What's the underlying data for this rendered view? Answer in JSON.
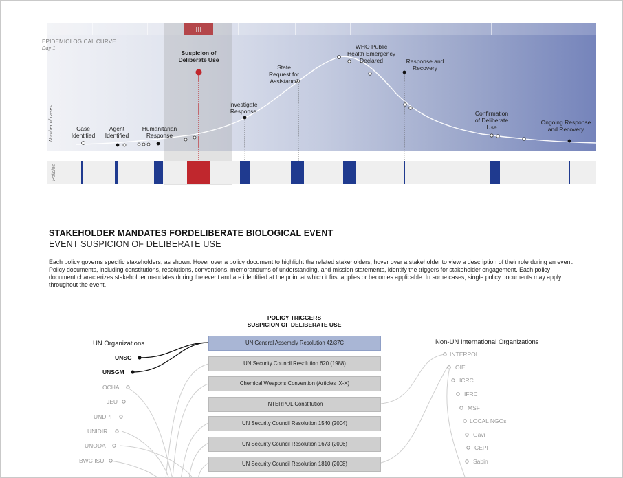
{
  "curve": {
    "title": "EPIDEMIOLOGICAL CURVE",
    "subtitle": "Day 1",
    "y_axis_label": "Number of cases",
    "selected_marker_glyph": "|||",
    "events": [
      {
        "label": "Case\nIdentified"
      },
      {
        "label": "Agent\nIdentified"
      },
      {
        "label": "Humanitarian\nResponse"
      },
      {
        "label": "Suspicion of\nDeliberate Use"
      },
      {
        "label": "Investigate\nResponse"
      },
      {
        "label": "State\nRequest for\nAssistance"
      },
      {
        "label": "WHO Public\nHealth Emergency\nDeclared"
      },
      {
        "label": "Response and\nRecovery"
      },
      {
        "label": "Confirmation\nof Deliberate\nUse"
      },
      {
        "label": "Ongoing Response\nand Recovery"
      }
    ]
  },
  "policies_strip": {
    "label": "Policies"
  },
  "mandates": {
    "title": "STAKEHOLDER MANDATES FORDELIBERATE BIOLOGICAL EVENT",
    "subtitle": "EVENT SUSPICION OF DELIBERATE USE",
    "intro": "Each policy governs specific stakeholders, as shown. Hover over a policy document to highlight the related stakeholders; hover over a stakeholder to view a description of their role during an event. Policy documents, including constitutions, resolutions, conventions, memorandums of understanding, and mission statements, identify the triggers for stakeholder engagement. Each policy document characterizes stakeholder mandates during the event and are identified at the point at which it first applies or becomes applicable. In some cases, single policy documents may apply throughout the event."
  },
  "triggers": {
    "title_line1": "POLICY TRIGGERS",
    "title_line2": "SUSPICION OF DELIBERATE USE",
    "policies": [
      {
        "label": "UN General Assembly Resolution 42/37C",
        "active": true
      },
      {
        "label": "UN Security Council Resolution 620 (1988)",
        "active": false
      },
      {
        "label": "Chemical Weapons Convention (Articles IX-X)",
        "active": false
      },
      {
        "label": "INTERPOL Constitution",
        "active": false
      },
      {
        "label": "UN Security Council Resolution 1540 (2004)",
        "active": false
      },
      {
        "label": "UN Security Council Resolution 1673 (2006)",
        "active": false
      },
      {
        "label": "UN Security Council Resolution 1810 (2008)",
        "active": false
      }
    ]
  },
  "un_orgs": {
    "title": "UN Organizations",
    "items": [
      {
        "label": "UNSG",
        "active": true
      },
      {
        "label": "UNSGM",
        "active": true
      },
      {
        "label": "OCHA",
        "active": false
      },
      {
        "label": "JEU",
        "active": false
      },
      {
        "label": "UNDPI",
        "active": false
      },
      {
        "label": "UNIDIR",
        "active": false
      },
      {
        "label": "UNODA",
        "active": false
      },
      {
        "label": "BWC ISU",
        "active": false
      }
    ]
  },
  "non_un_orgs": {
    "title": "Non-UN International Organizations",
    "items": [
      {
        "label": "INTERPOL"
      },
      {
        "label": "OIE"
      },
      {
        "label": "ICRC"
      },
      {
        "label": "IFRC"
      },
      {
        "label": "MSF"
      },
      {
        "label": "LOCAL NGOs"
      },
      {
        "label": "Gavi"
      },
      {
        "label": "CEPI"
      },
      {
        "label": "Sabin"
      }
    ]
  },
  "colors": {
    "accent_red": "#c0272d",
    "policy_blue": "#1f3a8f",
    "active_policy_box": "#a9b6d5",
    "inactive_policy_box": "#cfcfcf"
  }
}
